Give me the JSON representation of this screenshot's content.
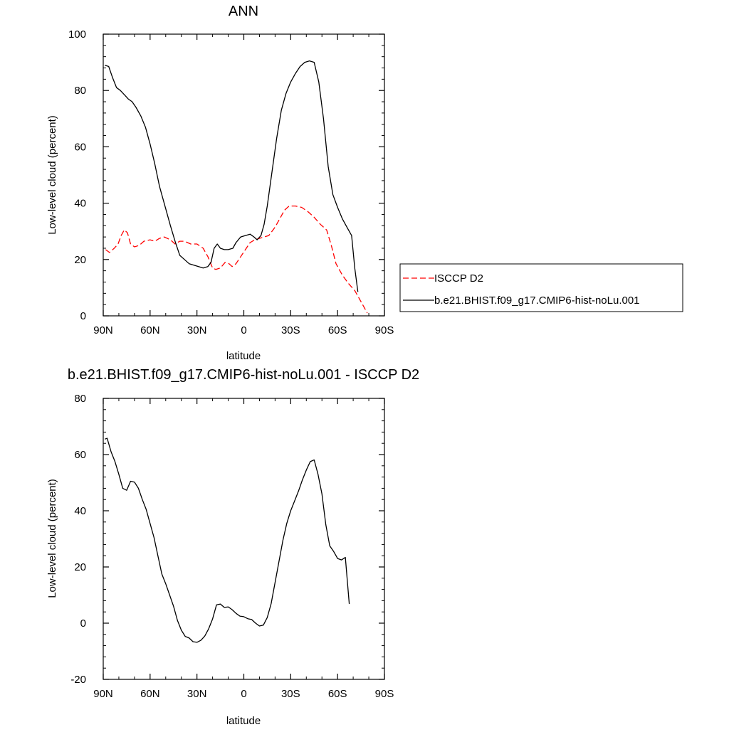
{
  "chart_data": [
    {
      "type": "line",
      "title": "ANN",
      "xlabel": "latitude",
      "ylabel": "Low-level cloud (percent)",
      "xlim": [
        90,
        -90
      ],
      "ylim": [
        0,
        100
      ],
      "x_ticks": [
        {
          "value": 90,
          "label": "90N"
        },
        {
          "value": 60,
          "label": "60N"
        },
        {
          "value": 30,
          "label": "30N"
        },
        {
          "value": 0,
          "label": "0"
        },
        {
          "value": -30,
          "label": "30S"
        },
        {
          "value": -60,
          "label": "60S"
        },
        {
          "value": -90,
          "label": "90S"
        }
      ],
      "y_ticks": [
        0,
        20,
        40,
        60,
        80,
        100
      ],
      "grid": false,
      "legend_position": "right",
      "series": [
        {
          "name": "ISCCP D2",
          "color": "#ff0000",
          "dash": "dashed",
          "points": [
            [
              88.5,
              23.5
            ],
            [
              86,
              22.5
            ],
            [
              83,
              24
            ],
            [
              80.5,
              25.5
            ],
            [
              78.5,
              28.5
            ],
            [
              76.5,
              30.5
            ],
            [
              74.5,
              29.5
            ],
            [
              72.5,
              25.5
            ],
            [
              70,
              24.5
            ],
            [
              67,
              25
            ],
            [
              64,
              26.5
            ],
            [
              60,
              27
            ],
            [
              57,
              26.5
            ],
            [
              54,
              27.5
            ],
            [
              51,
              28
            ],
            [
              47,
              27
            ],
            [
              44,
              25.5
            ],
            [
              41,
              26.5
            ],
            [
              38,
              26.5
            ],
            [
              34,
              25.5
            ],
            [
              30,
              25.5
            ],
            [
              26,
              24
            ],
            [
              23,
              21
            ],
            [
              20,
              17
            ],
            [
              18,
              16.5
            ],
            [
              15,
              17
            ],
            [
              12,
              19
            ],
            [
              9.5,
              18.5
            ],
            [
              7.5,
              17.5
            ],
            [
              5,
              18.5
            ],
            [
              2,
              21
            ],
            [
              -1,
              23.5
            ],
            [
              -4,
              26
            ],
            [
              -7,
              27
            ],
            [
              -10,
              27.5
            ],
            [
              -13,
              28
            ],
            [
              -16,
              28.5
            ],
            [
              -20,
              31.5
            ],
            [
              -23,
              34.5
            ],
            [
              -26,
              37.5
            ],
            [
              -29,
              39
            ],
            [
              -33,
              39
            ],
            [
              -37,
              38.5
            ],
            [
              -41,
              37
            ],
            [
              -45,
              35
            ],
            [
              -49,
              32.5
            ],
            [
              -53,
              30.5
            ],
            [
              -56,
              25
            ],
            [
              -59,
              18.5
            ],
            [
              -63,
              14.5
            ],
            [
              -67,
              11.5
            ],
            [
              -71,
              9
            ],
            [
              -74,
              6
            ],
            [
              -77,
              3
            ],
            [
              -79,
              1
            ]
          ]
        },
        {
          "name": "b.e21.BHIST.f09_g17.CMIP6-hist-noLu.001",
          "color": "#000000",
          "dash": "solid",
          "points": [
            [
              89,
              89
            ],
            [
              86.5,
              88.5
            ],
            [
              84,
              84.5
            ],
            [
              81.5,
              81
            ],
            [
              79,
              80
            ],
            [
              76.5,
              78.5
            ],
            [
              74,
              77
            ],
            [
              71.5,
              76
            ],
            [
              69,
              74
            ],
            [
              66,
              71
            ],
            [
              63,
              67
            ],
            [
              60,
              61
            ],
            [
              57,
              54
            ],
            [
              54,
              46
            ],
            [
              50.5,
              39
            ],
            [
              47,
              32
            ],
            [
              44,
              26.5
            ],
            [
              41,
              21.5
            ],
            [
              38,
              20
            ],
            [
              35,
              18.5
            ],
            [
              32,
              18
            ],
            [
              29,
              17.5
            ],
            [
              26,
              17
            ],
            [
              23,
              17.5
            ],
            [
              21,
              19
            ],
            [
              19,
              24
            ],
            [
              17,
              25.5
            ],
            [
              15,
              24
            ],
            [
              12.5,
              23.5
            ],
            [
              10,
              23.5
            ],
            [
              7,
              24
            ],
            [
              5,
              26
            ],
            [
              2,
              28
            ],
            [
              -1,
              28.5
            ],
            [
              -4,
              29
            ],
            [
              -6.5,
              28
            ],
            [
              -8.5,
              27
            ],
            [
              -11,
              28.5
            ],
            [
              -13,
              32.5
            ],
            [
              -15,
              39
            ],
            [
              -18,
              51
            ],
            [
              -21,
              63
            ],
            [
              -24,
              73
            ],
            [
              -27,
              79
            ],
            [
              -30,
              83
            ],
            [
              -33,
              86
            ],
            [
              -36,
              88.5
            ],
            [
              -39,
              90
            ],
            [
              -42,
              90.5
            ],
            [
              -45,
              90
            ],
            [
              -48,
              83
            ],
            [
              -51,
              70
            ],
            [
              -54,
              53
            ],
            [
              -57,
              43
            ],
            [
              -60,
              38.5
            ],
            [
              -63,
              34.5
            ],
            [
              -66,
              31.5
            ],
            [
              -69,
              28.5
            ],
            [
              -71,
              17
            ],
            [
              -73,
              8.5
            ]
          ]
        }
      ]
    },
    {
      "type": "line",
      "title": "b.e21.BHIST.f09_g17.CMIP6-hist-noLu.001 - ISCCP D2",
      "xlabel": "latitude",
      "ylabel": "Low-level cloud (percent)",
      "xlim": [
        90,
        -90
      ],
      "ylim": [
        -20,
        80
      ],
      "x_ticks": [
        {
          "value": 90,
          "label": "90N"
        },
        {
          "value": 60,
          "label": "60N"
        },
        {
          "value": 30,
          "label": "30N"
        },
        {
          "value": 0,
          "label": "0"
        },
        {
          "value": -30,
          "label": "30S"
        },
        {
          "value": -60,
          "label": "60S"
        },
        {
          "value": -90,
          "label": "90S"
        }
      ],
      "y_ticks": [
        -20,
        0,
        20,
        40,
        60,
        80
      ],
      "grid": false,
      "series": [
        {
          "color": "#000000",
          "dash": "solid",
          "points": [
            [
              89,
              65.5
            ],
            [
              87.5,
              65.8
            ],
            [
              85,
              61
            ],
            [
              82.5,
              57.5
            ],
            [
              80,
              53
            ],
            [
              77.5,
              48
            ],
            [
              75,
              47.3
            ],
            [
              72.5,
              50.5
            ],
            [
              70,
              50.2
            ],
            [
              67.5,
              48
            ],
            [
              65,
              44
            ],
            [
              62.5,
              40.5
            ],
            [
              60,
              35.5
            ],
            [
              57.5,
              30.5
            ],
            [
              55,
              24
            ],
            [
              52.5,
              17.5
            ],
            [
              50,
              14
            ],
            [
              47.5,
              10
            ],
            [
              45,
              6
            ],
            [
              42.5,
              1
            ],
            [
              40,
              -2.5
            ],
            [
              37.5,
              -4.7
            ],
            [
              35,
              -5.3
            ],
            [
              32.5,
              -6.6
            ],
            [
              30,
              -6.8
            ],
            [
              27.5,
              -6.1
            ],
            [
              25,
              -4.6
            ],
            [
              22.5,
              -2
            ],
            [
              20,
              1.5
            ],
            [
              17.5,
              6.5
            ],
            [
              15,
              6.8
            ],
            [
              12.5,
              5.6
            ],
            [
              10,
              5.8
            ],
            [
              7.5,
              4.8
            ],
            [
              5,
              3.5
            ],
            [
              2.5,
              2.5
            ],
            [
              0,
              2.3
            ],
            [
              -2.5,
              1.6
            ],
            [
              -5,
              1.3
            ],
            [
              -7.5,
              0
            ],
            [
              -10,
              -1
            ],
            [
              -12.5,
              -0.7
            ],
            [
              -15,
              2
            ],
            [
              -17.5,
              7
            ],
            [
              -20,
              14.5
            ],
            [
              -22.5,
              22
            ],
            [
              -25,
              29.5
            ],
            [
              -27.5,
              35.5
            ],
            [
              -30,
              40
            ],
            [
              -32.5,
              43.5
            ],
            [
              -35,
              47
            ],
            [
              -37.5,
              51
            ],
            [
              -40,
              54.5
            ],
            [
              -42.5,
              57.5
            ],
            [
              -45,
              58.1
            ],
            [
              -47.5,
              53
            ],
            [
              -50,
              46
            ],
            [
              -52.5,
              35
            ],
            [
              -55,
              27.5
            ],
            [
              -57.5,
              25.5
            ],
            [
              -60,
              23
            ],
            [
              -62.5,
              22.5
            ],
            [
              -65,
              23.4
            ],
            [
              -67.5,
              6.8
            ]
          ]
        }
      ]
    }
  ]
}
